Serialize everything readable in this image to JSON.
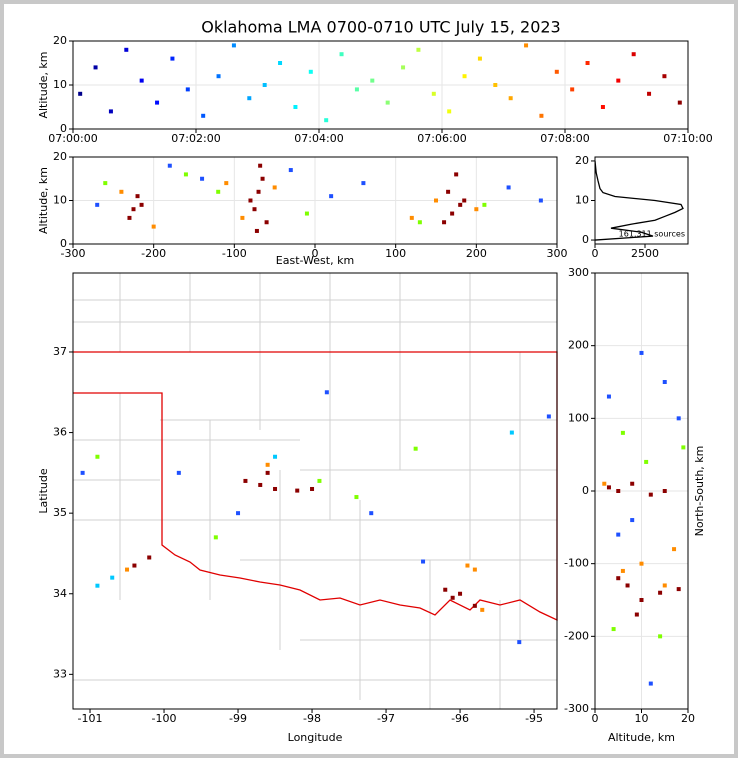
{
  "chart_data": [
    {
      "type": "scatter",
      "title": "Oklahoma LMA 0700-0710 UTC July 15, 2023",
      "y_label": "Altitude, km",
      "xlim": [
        "07:00:00",
        "07:10:00"
      ],
      "xticks": [
        "07:00:00",
        "07:02:00",
        "07:04:00",
        "07:06:00",
        "07:08:00",
        "07:10:00"
      ],
      "ylim": [
        0,
        20
      ],
      "yticks": [
        0,
        10,
        20
      ],
      "grid": true,
      "series": [
        {
          "colormap": "jet",
          "x": [
            "07:00:07",
            "07:00:22",
            "07:00:37",
            "07:00:52",
            "07:01:07",
            "07:01:22",
            "07:01:37",
            "07:01:52",
            "07:02:07",
            "07:02:22",
            "07:02:37",
            "07:02:52",
            "07:03:07",
            "07:03:22",
            "07:03:37",
            "07:03:52",
            "07:04:07",
            "07:04:22",
            "07:04:37",
            "07:04:52",
            "07:05:07",
            "07:05:22",
            "07:05:37",
            "07:05:52",
            "07:06:07",
            "07:06:22",
            "07:06:37",
            "07:06:52",
            "07:07:07",
            "07:07:22",
            "07:07:37",
            "07:07:52",
            "07:08:07",
            "07:08:22",
            "07:08:37",
            "07:08:52",
            "07:09:07",
            "07:09:22",
            "07:09:37",
            "07:09:52"
          ],
          "y": [
            8,
            14,
            4,
            18,
            11,
            6,
            16,
            9,
            3,
            12,
            19,
            7,
            10,
            15,
            5,
            13,
            2,
            17,
            9,
            11,
            6,
            14,
            18,
            8,
            4,
            12,
            16,
            10,
            7,
            19,
            3,
            13,
            9,
            15,
            5,
            11,
            17,
            8,
            12,
            6
          ]
        }
      ]
    },
    {
      "type": "scatter",
      "x_label": "East-West, km",
      "y_label": "Altitude, km",
      "xlim": [
        -300,
        300
      ],
      "xticks": [
        -300,
        -200,
        -100,
        0,
        100,
        200,
        300
      ],
      "ylim": [
        0,
        20
      ],
      "yticks": [
        0,
        10,
        20
      ],
      "grid": true,
      "series": [
        {
          "color": "#8b0000",
          "x": [
            -75,
            -70,
            -65,
            -60,
            -80,
            -68,
            -72,
            -225,
            -220,
            -230,
            -215,
            170,
            165,
            175,
            180,
            160,
            185
          ],
          "y": [
            8,
            12,
            15,
            5,
            10,
            18,
            3,
            8,
            11,
            6,
            9,
            7,
            12,
            16,
            9,
            5,
            10
          ]
        },
        {
          "color": "#ff8c00",
          "x": [
            -90,
            -50,
            -240,
            -200,
            150,
            200,
            -110,
            120
          ],
          "y": [
            6,
            13,
            12,
            4,
            10,
            8,
            14,
            6
          ]
        },
        {
          "color": "#1e50ff",
          "x": [
            -140,
            -30,
            -270,
            20,
            240,
            280,
            -180,
            60
          ],
          "y": [
            15,
            17,
            9,
            11,
            13,
            10,
            18,
            14
          ]
        },
        {
          "color": "#7fff00",
          "x": [
            -120,
            -10,
            -260,
            210,
            130,
            -160
          ],
          "y": [
            12,
            7,
            14,
            9,
            5,
            16
          ]
        }
      ]
    },
    {
      "type": "line",
      "annotation": "161,311 sources",
      "xlim": [
        0,
        4650
      ],
      "xticks": [
        0,
        2500
      ],
      "ylim": [
        -1,
        21
      ],
      "yticks": [
        0,
        10,
        20
      ],
      "series": [
        {
          "color": "#000000",
          "x": [
            0,
            2900,
            2300,
            800,
            1800,
            3000,
            3500,
            4000,
            4400,
            4300,
            3000,
            1000,
            400,
            250,
            150,
            60,
            20,
            0
          ],
          "y": [
            0,
            1,
            2,
            3,
            4,
            5,
            6,
            7,
            8,
            9,
            10,
            11,
            12,
            13,
            15,
            17,
            19,
            20
          ]
        }
      ]
    },
    {
      "type": "scatter",
      "x_label": "Longitude",
      "y_label": "Latitude",
      "xlim": [
        -101.23,
        -94.69
      ],
      "xticks": [
        -101,
        -100,
        -99,
        -98,
        -97,
        -96,
        -95
      ],
      "ylim": [
        32.57,
        37.98
      ],
      "yticks": [
        33,
        34,
        35,
        36,
        37
      ],
      "series": [
        {
          "color": "#8b0000",
          "x": [
            -98.7,
            -98.5,
            -98.2,
            -98.9,
            -96.2,
            -96.0,
            -95.8,
            -100.4,
            -100.2,
            -98.6,
            -96.1,
            -98.0
          ],
          "y": [
            35.35,
            35.3,
            35.28,
            35.4,
            34.05,
            34.0,
            33.85,
            34.35,
            34.45,
            35.5,
            33.95,
            35.3
          ]
        },
        {
          "color": "#ff8c00",
          "x": [
            -95.9,
            -95.8,
            -100.5,
            -98.6,
            -95.7
          ],
          "y": [
            34.35,
            34.3,
            34.3,
            35.6,
            33.8
          ]
        },
        {
          "color": "#00c8ff",
          "x": [
            -100.7,
            -100.9,
            -98.5,
            -95.3
          ],
          "y": [
            34.2,
            34.1,
            35.7,
            36.0
          ]
        },
        {
          "color": "#1e50ff",
          "x": [
            -101.1,
            -99.8,
            -97.8,
            -96.5,
            -95.2,
            -94.8,
            -99.0,
            -97.2
          ],
          "y": [
            35.5,
            35.5,
            36.5,
            34.4,
            33.4,
            36.2,
            35.0,
            35.0
          ]
        },
        {
          "color": "#7fff00",
          "x": [
            -97.9,
            -99.3,
            -97.4,
            -100.9,
            -96.6
          ],
          "y": [
            35.4,
            34.7,
            35.2,
            35.7,
            35.8
          ]
        }
      ]
    },
    {
      "type": "scatter",
      "x_label": "Altitude, km",
      "y_label": "North-South, km",
      "xlim": [
        0,
        20
      ],
      "xticks": [
        0,
        10,
        20
      ],
      "ylim": [
        -300,
        300
      ],
      "yticks": [
        -300,
        -200,
        -100,
        0,
        100,
        200,
        300
      ],
      "grid": true,
      "series": [
        {
          "color": "#8b0000",
          "x": [
            5,
            8,
            12,
            3,
            15,
            7,
            10,
            5,
            14,
            9,
            18
          ],
          "y": [
            0,
            10,
            -5,
            5,
            0,
            -130,
            -150,
            -120,
            -140,
            -170,
            -135
          ]
        },
        {
          "color": "#ff8c00",
          "x": [
            10,
            15,
            6,
            17,
            2
          ],
          "y": [
            -100,
            -130,
            -110,
            -80,
            10
          ]
        },
        {
          "color": "#1e50ff",
          "x": [
            3,
            10,
            15,
            5,
            12,
            18,
            8
          ],
          "y": [
            130,
            190,
            150,
            -60,
            -265,
            100,
            -40
          ]
        },
        {
          "color": "#7fff00",
          "x": [
            6,
            14,
            19,
            4,
            11
          ],
          "y": [
            80,
            -200,
            60,
            -190,
            40
          ]
        }
      ]
    }
  ]
}
